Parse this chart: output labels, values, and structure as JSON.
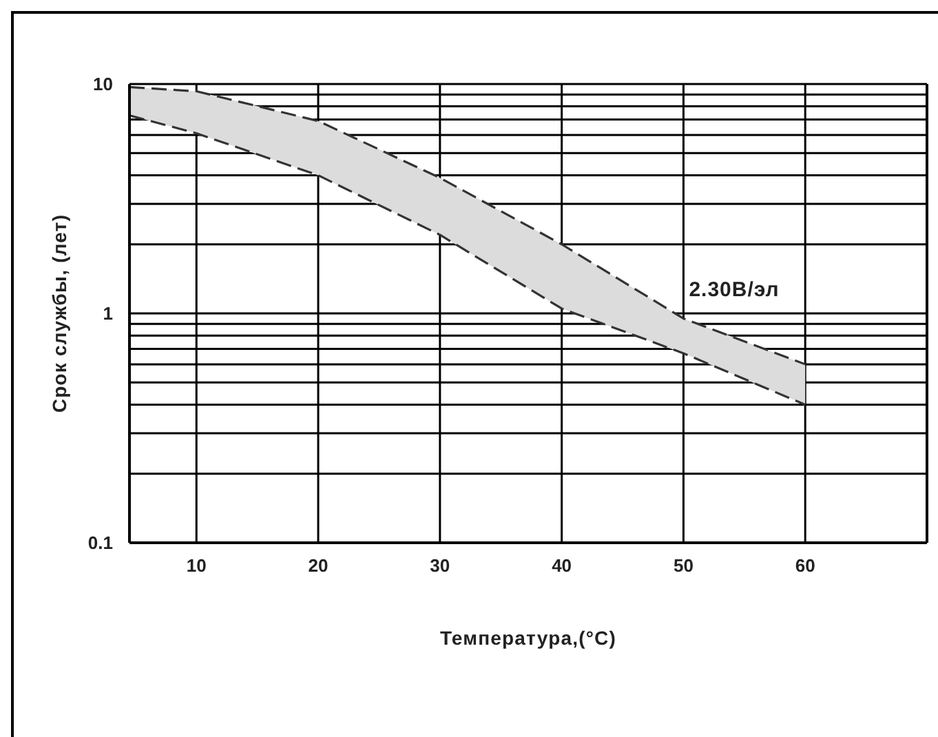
{
  "chart_data": {
    "type": "area",
    "xlabel": "Температура,(°C)",
    "ylabel": "Срок службы, (лет)",
    "x": [
      4.5,
      10,
      20,
      30,
      40,
      50,
      60
    ],
    "series": [
      {
        "color": "#dcdcdc",
        "values": [
          null,
          null,
          null,
          null,
          null,
          null,
          null
        ],
        "lower": [
          7.3,
          6.1,
          4.0,
          2.2,
          1.05,
          0.67,
          0.4
        ],
        "upper": [
          9.7,
          9.3,
          6.9,
          3.9,
          2.0,
          0.95,
          0.6
        ]
      },
      {
        "name": "2.30В/эл",
        "type": "line",
        "color": "#333333",
        "values": [
          9.7,
          9.3,
          6.9,
          3.9,
          2.0,
          0.95,
          0.6
        ]
      },
      {
        "type": "line",
        "color": "#333333",
        "values": [
          7.3,
          6.1,
          4.0,
          2.2,
          1.05,
          0.67,
          0.4
        ]
      }
    ],
    "xlim": [
      4.5,
      70
    ],
    "xticks": [
      10,
      20,
      30,
      40,
      50,
      60
    ],
    "ylim": [
      0.1,
      10
    ],
    "yticks": [
      0.1,
      {
        "value": 0.2,
        "label": null
      },
      {
        "value": 0.3,
        "label": null
      },
      {
        "value": 0.4,
        "label": null
      },
      {
        "value": 0.5,
        "label": null
      },
      {
        "value": 0.6,
        "label": null
      },
      {
        "value": 0.7,
        "label": null
      },
      {
        "value": 0.8,
        "label": null
      },
      {
        "value": 0.9,
        "label": null
      },
      1,
      {
        "value": 2,
        "label": null
      },
      {
        "value": 3,
        "label": null
      },
      {
        "value": 4,
        "label": null
      },
      {
        "value": 5,
        "label": null
      },
      {
        "value": 6,
        "label": null
      },
      {
        "value": 7,
        "label": null
      },
      {
        "value": 8,
        "label": null
      },
      {
        "value": 9,
        "label": null
      },
      10
    ],
    "log": true,
    "grid": true,
    "line_style": "dashed"
  }
}
